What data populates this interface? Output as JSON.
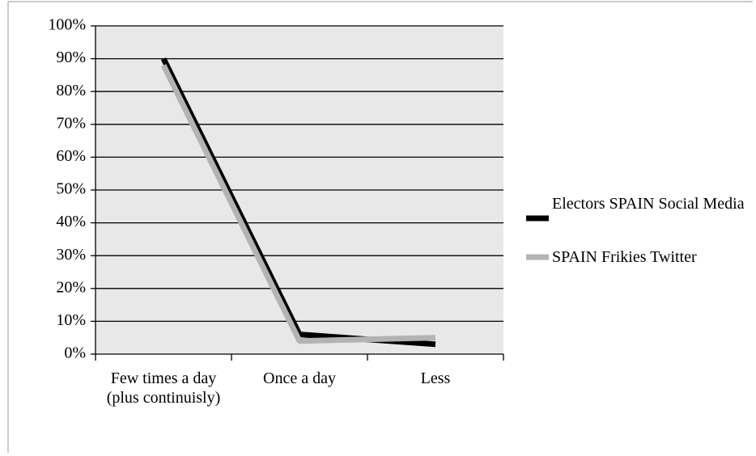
{
  "chart_data": {
    "type": "line",
    "categories": [
      "Few times a day (plus continuisly)",
      "Once a day",
      "Less"
    ],
    "series": [
      {
        "name": "Electors  SPAIN Social Media",
        "color": "#000000",
        "values": [
          90,
          6,
          3
        ]
      },
      {
        "name": "SPAIN Frikies Twitter",
        "color": "#b3b3b3",
        "values": [
          88,
          4,
          5
        ]
      }
    ],
    "ylim": [
      0,
      100
    ],
    "yticks": [
      {
        "value": 0,
        "label": "0%"
      },
      {
        "value": 10,
        "label": "10%"
      },
      {
        "value": 20,
        "label": "20%"
      },
      {
        "value": 30,
        "label": "30%"
      },
      {
        "value": 40,
        "label": "40%"
      },
      {
        "value": 50,
        "label": "50%"
      },
      {
        "value": 60,
        "label": "60%"
      },
      {
        "value": 70,
        "label": "70%"
      },
      {
        "value": 80,
        "label": "80%"
      },
      {
        "value": 90,
        "label": "90%"
      },
      {
        "value": 100,
        "label": "100%"
      }
    ],
    "grid": true,
    "legend": "right"
  }
}
